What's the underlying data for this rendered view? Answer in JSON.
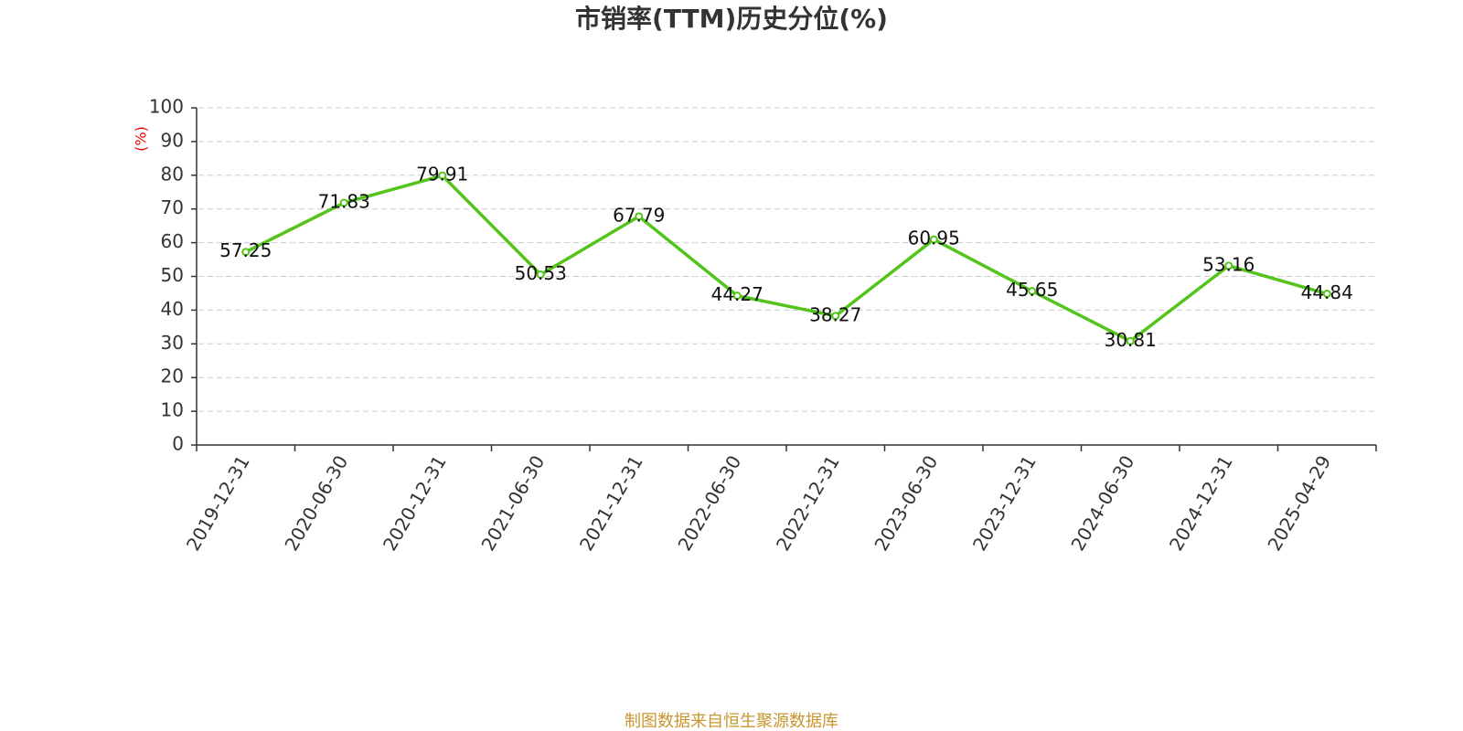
{
  "chart_data": {
    "type": "line",
    "title": "市销率(TTM)历史分位(%)",
    "ylabel": "(%)",
    "source": "制图数据来自恒生聚源数据库",
    "categories": [
      "2019-12-31",
      "2020-06-30",
      "2020-12-31",
      "2021-06-30",
      "2021-12-31",
      "2022-06-30",
      "2022-12-31",
      "2023-06-30",
      "2023-12-31",
      "2024-06-30",
      "2024-12-31",
      "2025-04-29"
    ],
    "values": [
      57.25,
      71.83,
      79.91,
      50.53,
      67.79,
      44.27,
      38.27,
      60.95,
      45.65,
      30.81,
      53.16,
      44.84
    ],
    "color": "#52c41a",
    "ylim": [
      0,
      100
    ],
    "yticks": [
      0,
      10,
      20,
      30,
      40,
      50,
      60,
      70,
      80,
      90,
      100
    ],
    "grid": true
  }
}
